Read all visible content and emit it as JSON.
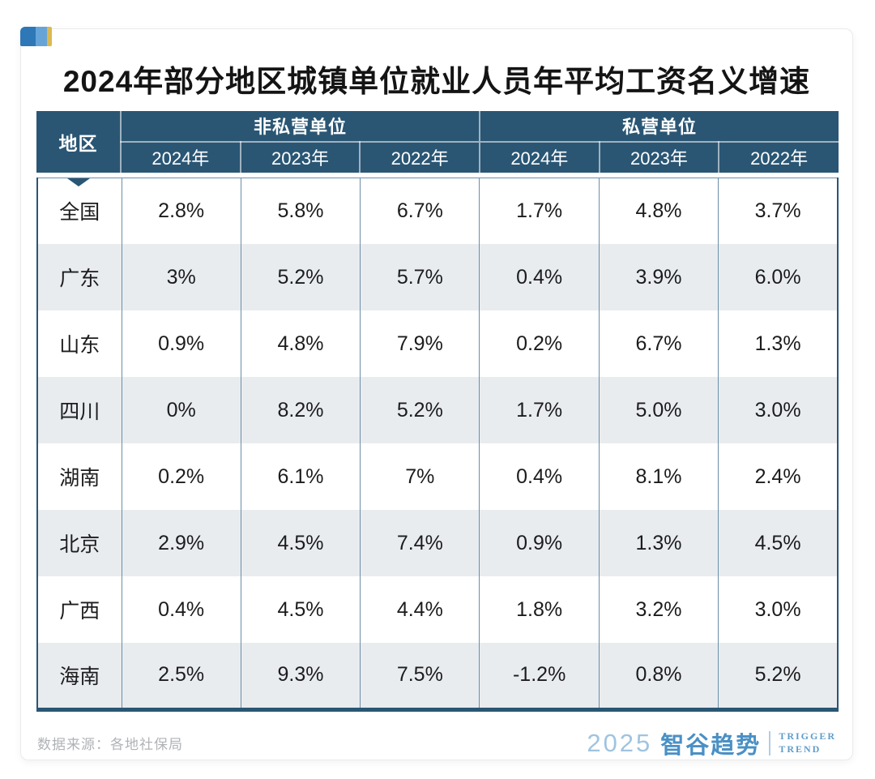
{
  "title": "2024年部分地区城镇单位就业人员年平均工资名义增速",
  "source_note": "数据来源：各地社保局",
  "logo": {
    "year": "2025",
    "brand_cn": "智谷趋势",
    "brand_en_line1": "TRIGGER",
    "brand_en_line2": "TREND"
  },
  "chart_data": {
    "type": "table",
    "title": "2024年部分地区城镇单位就业人员年平均工资名义增速",
    "region_column": "地区",
    "column_groups": [
      {
        "label": "非私营单位",
        "years": [
          "2024年",
          "2023年",
          "2022年"
        ]
      },
      {
        "label": "私营单位",
        "years": [
          "2024年",
          "2023年",
          "2022年"
        ]
      }
    ],
    "rows": [
      {
        "region": "全国",
        "non_private": [
          "2.8%",
          "5.8%",
          "6.7%"
        ],
        "private": [
          "1.7%",
          "4.8%",
          "3.7%"
        ]
      },
      {
        "region": "广东",
        "non_private": [
          "3%",
          "5.2%",
          "5.7%"
        ],
        "private": [
          "0.4%",
          "3.9%",
          "6.0%"
        ]
      },
      {
        "region": "山东",
        "non_private": [
          "0.9%",
          "4.8%",
          "7.9%"
        ],
        "private": [
          "0.2%",
          "6.7%",
          "1.3%"
        ]
      },
      {
        "region": "四川",
        "non_private": [
          "0%",
          "8.2%",
          "5.2%"
        ],
        "private": [
          "1.7%",
          "5.0%",
          "3.0%"
        ]
      },
      {
        "region": "湖南",
        "non_private": [
          "0.2%",
          "6.1%",
          "7%"
        ],
        "private": [
          "0.4%",
          "8.1%",
          "2.4%"
        ]
      },
      {
        "region": "北京",
        "non_private": [
          "2.9%",
          "4.5%",
          "7.4%"
        ],
        "private": [
          "0.9%",
          "1.3%",
          "4.5%"
        ]
      },
      {
        "region": "广西",
        "non_private": [
          "0.4%",
          "4.5%",
          "4.4%"
        ],
        "private": [
          "1.8%",
          "3.2%",
          "3.0%"
        ]
      },
      {
        "region": "海南",
        "non_private": [
          "2.5%",
          "9.3%",
          "7.5%"
        ],
        "private": [
          "-1.2%",
          "0.8%",
          "5.2%"
        ]
      }
    ]
  },
  "colors": {
    "header_bg": "#2a5674",
    "row_stripe": "#e9ecef",
    "grid_line": "#6a8fa8",
    "title_text": "#141414",
    "footer_text": "#b0b3b6",
    "logo_blue": "#4a90c5",
    "logo_light_blue": "#9fc4e0",
    "corner_dark_blue": "#2e78b7",
    "corner_light_blue": "#66a4d8",
    "corner_gold": "#ddb84e"
  }
}
